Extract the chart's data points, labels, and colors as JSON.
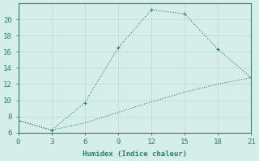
{
  "xlabel": "Humidex (Indice chaleur)",
  "background_color": "#d5eeea",
  "line_color": "#2e7d6e",
  "grid_color": "#c0ddd8",
  "x_line1": [
    0,
    3,
    6,
    9,
    12,
    15,
    18,
    21
  ],
  "y_line1": [
    7.5,
    6.3,
    9.7,
    16.5,
    21.2,
    20.7,
    16.3,
    12.8
  ],
  "x_line2": [
    0,
    3,
    6,
    9,
    12,
    15,
    18,
    21
  ],
  "y_line2": [
    7.5,
    6.3,
    7.2,
    8.5,
    9.8,
    11.0,
    12.0,
    12.8
  ],
  "xlim": [
    0,
    21
  ],
  "ylim": [
    6,
    22
  ],
  "xticks": [
    0,
    3,
    6,
    9,
    12,
    15,
    18,
    21
  ],
  "yticks": [
    6,
    8,
    10,
    12,
    14,
    16,
    18,
    20
  ],
  "markersize": 3.5,
  "linewidth": 0.8
}
